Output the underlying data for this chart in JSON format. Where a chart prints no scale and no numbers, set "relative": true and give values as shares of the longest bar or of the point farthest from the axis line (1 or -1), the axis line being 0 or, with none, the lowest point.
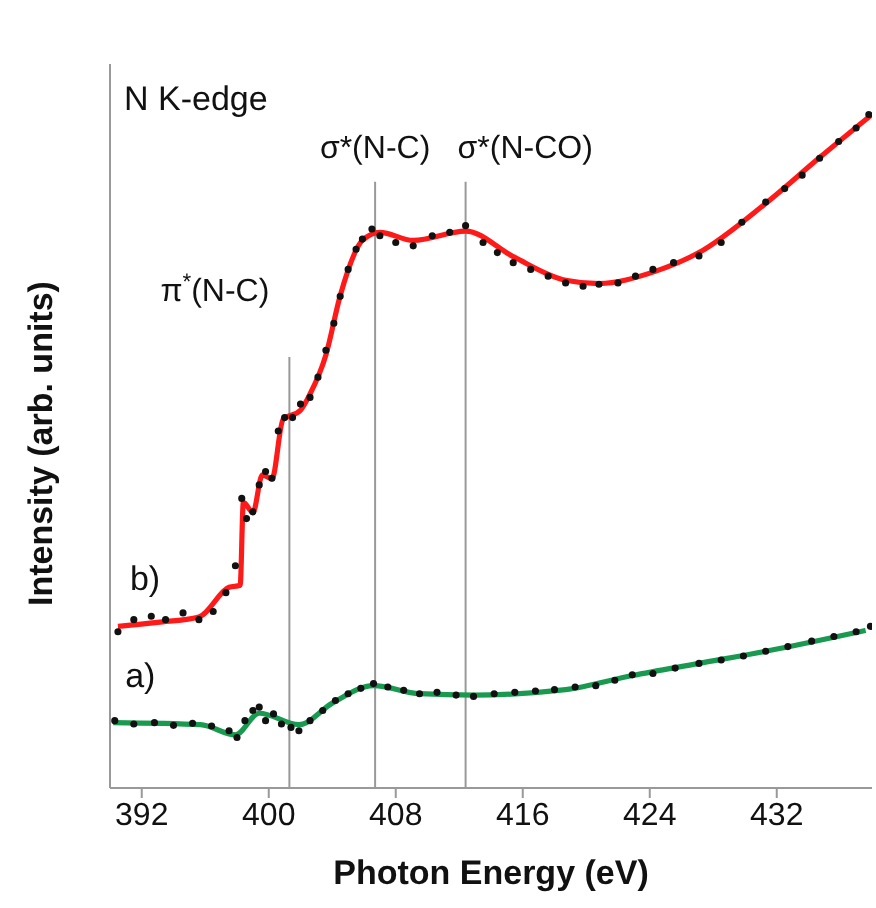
{
  "chart_data": {
    "type": "line",
    "relative": true,
    "xlabel": "Photon Energy (eV)",
    "ylabel": "Intensity (arb. units)",
    "xlim": [
      390,
      438
    ],
    "xticks": [
      392,
      400,
      408,
      416,
      424,
      432
    ],
    "tick_labels": "x",
    "marker": "none",
    "line_style": "solid",
    "annotations": [
      "N K-edge"
    ],
    "ref_lines": [
      {
        "axis": "x",
        "value": 401.3,
        "label": "π$^{*}$(N-C)",
        "color": "#999999"
      },
      {
        "axis": "x",
        "value": 406.7,
        "label": "σ*(N-C)",
        "color": "#999999"
      },
      {
        "axis": "x",
        "value": 412.4,
        "label": "σ*(N-CO)",
        "color": "#999999"
      }
    ],
    "series": [
      {
        "type": "scatter",
        "marker": "circle",
        "color": "#111111",
        "x": [
          390.5,
          391.5,
          392.6,
          393.5,
          394.6,
          395.6,
          396.5,
          397.3,
          397.9,
          398.3,
          398.6,
          399.0,
          399.4,
          399.8,
          400.2,
          400.6,
          401.0,
          401.5,
          402.0,
          402.6,
          403.1,
          403.6,
          404.1,
          404.5,
          405.0,
          405.5,
          405.9,
          406.5,
          407.0,
          408.0,
          409.1,
          410.3,
          411.4,
          412.4,
          413.5,
          414.4,
          415.4,
          416.5,
          417.6,
          418.7,
          419.8,
          420.8,
          422.0,
          423.1,
          424.2,
          425.5,
          427.1,
          428.5,
          429.8,
          431.3,
          432.5,
          433.6,
          434.7,
          435.9,
          437.0,
          437.8
        ],
        "values": [
          0.232,
          0.25,
          0.255,
          0.25,
          0.26,
          0.25,
          0.262,
          0.29,
          0.33,
          0.43,
          0.4,
          0.41,
          0.45,
          0.47,
          0.46,
          0.53,
          0.55,
          0.55,
          0.57,
          0.58,
          0.61,
          0.65,
          0.69,
          0.73,
          0.77,
          0.8,
          0.815,
          0.83,
          0.82,
          0.81,
          0.805,
          0.82,
          0.825,
          0.835,
          0.81,
          0.795,
          0.78,
          0.77,
          0.76,
          0.75,
          0.745,
          0.748,
          0.75,
          0.76,
          0.77,
          0.78,
          0.79,
          0.81,
          0.84,
          0.87,
          0.89,
          0.91,
          0.935,
          0.96,
          0.98,
          1.0
        ]
      },
      {
        "name": "b)",
        "color": "#ff1a1a",
        "x": [
          390.5,
          393,
          395.6,
          397.5,
          398.2,
          398.4,
          399.0,
          399.6,
          400.2,
          400.9,
          402.0,
          402.6,
          403.6,
          404.5,
          405.9,
          407.0,
          409.1,
          412.4,
          415.4,
          418.7,
          420.8,
          424.2,
          427.1,
          431.3,
          434.7,
          438
        ],
        "values": [
          0.24,
          0.246,
          0.254,
          0.298,
          0.301,
          0.424,
          0.409,
          0.465,
          0.459,
          0.547,
          0.561,
          0.585,
          0.643,
          0.731,
          0.813,
          0.825,
          0.813,
          0.827,
          0.789,
          0.754,
          0.749,
          0.766,
          0.795,
          0.868,
          0.936,
          1
        ]
      },
      {
        "type": "scatter",
        "marker": "circle",
        "color": "#111111",
        "x": [
          390.3,
          391.5,
          392.8,
          394.0,
          395.2,
          396.4,
          397.5,
          398.0,
          398.5,
          399.0,
          399.4,
          399.8,
          400.3,
          400.8,
          401.4,
          401.9,
          402.6,
          403.4,
          404.2,
          405.0,
          405.8,
          406.6,
          407.5,
          408.5,
          409.5,
          410.6,
          411.8,
          412.9,
          414.2,
          415.5,
          416.8,
          418.0,
          419.3,
          420.6,
          421.8,
          422.9,
          424.2,
          425.6,
          427.1,
          428.5,
          429.9,
          431.3,
          432.7,
          434.2,
          435.6,
          437.0,
          437.9
        ],
        "values": [
          0.1,
          0.095,
          0.097,
          0.093,
          0.096,
          0.092,
          0.085,
          0.075,
          0.1,
          0.115,
          0.12,
          0.1,
          0.11,
          0.095,
          0.09,
          0.085,
          0.1,
          0.115,
          0.13,
          0.14,
          0.148,
          0.155,
          0.15,
          0.145,
          0.14,
          0.142,
          0.138,
          0.136,
          0.14,
          0.142,
          0.144,
          0.146,
          0.15,
          0.152,
          0.16,
          0.168,
          0.17,
          0.178,
          0.185,
          0.19,
          0.196,
          0.203,
          0.21,
          0.218,
          0.225,
          0.232,
          0.24
        ]
      },
      {
        "name": "a)",
        "color": "#1a9a50",
        "x": [
          390.2,
          395.7,
          397.9,
          399.4,
          401.9,
          404.0,
          406.6,
          409.5,
          412.9,
          418.7,
          422.9,
          427.1,
          431.3,
          437.6
        ],
        "values": [
          0.097,
          0.094,
          0.079,
          0.111,
          0.094,
          0.126,
          0.152,
          0.14,
          0.138,
          0.146,
          0.167,
          0.185,
          0.203,
          0.234
        ]
      }
    ]
  }
}
